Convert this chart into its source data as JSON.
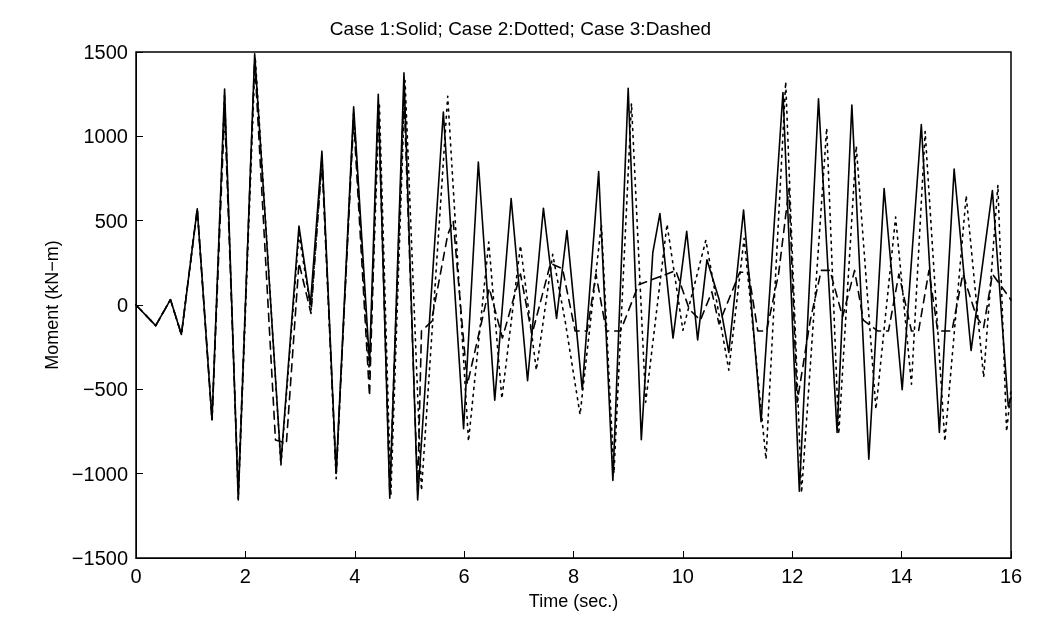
{
  "chart_data": {
    "type": "line",
    "title": "Case 1:Solid; Case 2:Dotted; Case 3:Dashed",
    "xlabel": "Time (sec.)",
    "ylabel": "Moment (kN−m)",
    "xlim": [
      0,
      16
    ],
    "xticks": [
      0,
      2,
      4,
      6,
      8,
      10,
      12,
      14,
      16
    ],
    "ylim": [
      -1500,
      1500
    ],
    "yticks": [
      -1500,
      -1000,
      -500,
      0,
      500,
      1000,
      1500
    ],
    "grid": false,
    "marker": "none",
    "series": [
      {
        "line_style": "solid",
        "color": "#000000",
        "x": [
          0,
          0.36,
          0.63,
          0.83,
          1.12,
          1.39,
          1.62,
          1.87,
          2.17,
          2.65,
          2.98,
          3.19,
          3.4,
          3.66,
          3.98,
          4.27,
          4.43,
          4.64,
          4.9,
          5.15,
          5.62,
          5.99,
          6.26,
          6.56,
          6.86,
          7.16,
          7.45,
          7.69,
          7.88,
          8.16,
          8.46,
          8.72,
          9.0,
          9.24,
          9.45,
          9.58,
          9.82,
          10.07,
          10.27,
          10.44,
          10.66,
          10.84,
          11.11,
          11.43,
          11.83,
          12.13,
          12.48,
          12.82,
          13.09,
          13.4,
          13.68,
          14.01,
          14.36,
          14.69,
          14.96,
          15.27,
          15.66,
          15.95,
          16
        ],
        "values": [
          0,
          -122,
          32,
          -175,
          570,
          -682,
          1281,
          -1156,
          1490,
          -935,
          468,
          4,
          912,
          -998,
          1175,
          -344,
          1249,
          -1146,
          1376,
          -1156,
          1144,
          -734,
          848,
          -565,
          631,
          -449,
          574,
          -80,
          441,
          -502,
          791,
          -1040,
          1285,
          -798,
          310,
          542,
          -196,
          437,
          -207,
          268,
          36,
          -281,
          563,
          -692,
          1260,
          -1104,
          1222,
          -755,
          1186,
          -914,
          690,
          -502,
          1070,
          -755,
          806,
          -270,
          679,
          -600,
          -550
        ]
      },
      {
        "line_style": "dotted",
        "color": "#000000",
        "x": [
          0,
          0.36,
          0.63,
          0.83,
          1.12,
          1.39,
          1.62,
          1.87,
          2.18,
          2.65,
          2.98,
          3.2,
          3.4,
          3.66,
          3.98,
          4.27,
          4.45,
          4.66,
          4.92,
          5.22,
          5.7,
          6.08,
          6.45,
          6.69,
          7.03,
          7.32,
          7.62,
          7.85,
          8.12,
          8.51,
          8.74,
          9.06,
          9.32,
          9.71,
          10.0,
          10.42,
          10.84,
          11.12,
          11.52,
          11.88,
          12.17,
          12.63,
          12.85,
          13.17,
          13.53,
          13.89,
          14.18,
          14.43,
          14.79,
          15.18,
          15.5,
          15.76,
          15.92,
          16
        ],
        "values": [
          0,
          -122,
          32,
          -175,
          570,
          -682,
          1250,
          -1150,
          1470,
          -950,
          420,
          -30,
          880,
          -1030,
          1150,
          -420,
          1200,
          -1130,
          1330,
          -1100,
          1238,
          -808,
          373,
          -555,
          352,
          -386,
          300,
          -100,
          -650,
          479,
          -998,
          1196,
          -576,
          479,
          -150,
          384,
          -386,
          395,
          -914,
          1323,
          -1114,
          1049,
          -766,
          943,
          -618,
          521,
          -470,
          1028,
          -808,
          648,
          -428,
          711,
          -750,
          -500
        ]
      },
      {
        "line_style": "dashed",
        "color": "#000000",
        "x": [
          0,
          0.36,
          0.63,
          0.83,
          1.12,
          1.39,
          1.62,
          1.87,
          2.17,
          2.55,
          2.75,
          2.98,
          3.2,
          3.4,
          3.66,
          3.98,
          4.27,
          4.43,
          4.64,
          4.9,
          5.15,
          5.22,
          5.4,
          5.7,
          5.8,
          6.06,
          6.46,
          6.7,
          7.03,
          7.24,
          7.58,
          7.8,
          8.03,
          8.25,
          8.41,
          8.6,
          8.86,
          9.19,
          9.71,
          9.87,
          10.12,
          10.32,
          10.53,
          10.66,
          11.04,
          11.2,
          11.37,
          11.53,
          11.75,
          11.94,
          12.09,
          12.33,
          12.53,
          12.69,
          12.92,
          13.14,
          13.3,
          13.56,
          13.76,
          13.95,
          14.18,
          14.31,
          14.5,
          14.66,
          14.92,
          15.12,
          15.37,
          15.5,
          15.66,
          16
        ],
        "values": [
          0,
          -122,
          32,
          -175,
          570,
          -682,
          1150,
          -1100,
          1450,
          -800,
          -820,
          250,
          -50,
          850,
          -1000,
          1100,
          -540,
          1200,
          -1100,
          1250,
          -1100,
          -154,
          -100,
          416,
          500,
          -470,
          100,
          -196,
          184,
          -175,
          247,
          215,
          -154,
          -154,
          184,
          -154,
          -154,
          120,
          184,
          205,
          -27,
          -90,
          78,
          -112,
          194,
          194,
          -154,
          -154,
          184,
          690,
          -576,
          -90,
          205,
          205,
          -70,
          205,
          -90,
          -154,
          -154,
          184,
          -154,
          -154,
          205,
          -154,
          -154,
          184,
          -70,
          -133,
          184,
          30
        ]
      }
    ]
  }
}
